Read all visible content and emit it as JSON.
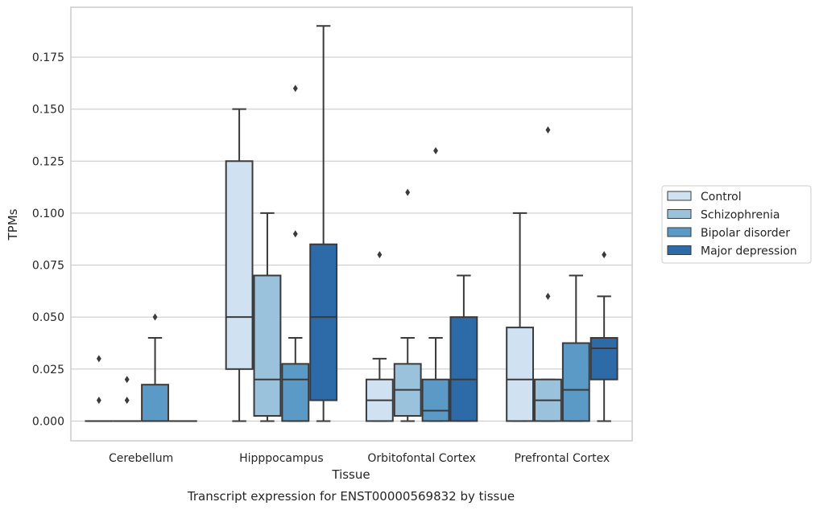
{
  "chart_data": {
    "type": "box",
    "title": "",
    "caption": "Transcript expression for ENST00000569832 by tissue",
    "xlabel": "Tissue",
    "ylabel": "TPMs",
    "ylim": [
      -0.0095,
      0.199
    ],
    "yticks": [
      "0.000",
      "0.025",
      "0.050",
      "0.075",
      "0.100",
      "0.125",
      "0.150",
      "0.175"
    ],
    "grid": "horizontal",
    "legend_position": "right",
    "categories": [
      "Cerebellum",
      "Hipppocampus",
      "Orbitofontal Cortex",
      "Prefrontal Cortex"
    ],
    "series": [
      {
        "name": "Control",
        "color": "#d0e1f2",
        "boxes": [
          {
            "min": 0.0,
            "q1": 0.0,
            "median": 0.0,
            "q3": 0.0,
            "max": 0.0,
            "outliers": [
              0.01,
              0.03
            ]
          },
          {
            "min": 0.0,
            "q1": 0.025,
            "median": 0.05,
            "q3": 0.125,
            "max": 0.15,
            "outliers": []
          },
          {
            "min": 0.0,
            "q1": 0.0,
            "median": 0.01,
            "q3": 0.02,
            "max": 0.03,
            "outliers": [
              0.08
            ]
          },
          {
            "min": 0.0,
            "q1": 0.0,
            "median": 0.02,
            "q3": 0.045,
            "max": 0.1,
            "outliers": []
          }
        ]
      },
      {
        "name": "Schizophrenia",
        "color": "#9ac2dc",
        "boxes": [
          {
            "min": 0.0,
            "q1": 0.0,
            "median": 0.0,
            "q3": 0.0,
            "max": 0.0,
            "outliers": [
              0.01,
              0.02
            ]
          },
          {
            "min": 0.0,
            "q1": 0.0025,
            "median": 0.02,
            "q3": 0.07,
            "max": 0.1,
            "outliers": []
          },
          {
            "min": 0.0,
            "q1": 0.0025,
            "median": 0.015,
            "q3": 0.0275,
            "max": 0.04,
            "outliers": [
              0.11
            ]
          },
          {
            "min": 0.0,
            "q1": 0.0,
            "median": 0.01,
            "q3": 0.02,
            "max": 0.02,
            "outliers": [
              0.06,
              0.14
            ]
          }
        ]
      },
      {
        "name": "Bipolar disorder",
        "color": "#5b9ac6",
        "boxes": [
          {
            "min": 0.0,
            "q1": 0.0,
            "median": 0.0,
            "q3": 0.0175,
            "max": 0.04,
            "outliers": [
              0.05
            ]
          },
          {
            "min": 0.0,
            "q1": 0.0,
            "median": 0.02,
            "q3": 0.0275,
            "max": 0.04,
            "outliers": [
              0.09,
              0.16
            ]
          },
          {
            "min": 0.0,
            "q1": 0.0,
            "median": 0.005,
            "q3": 0.02,
            "max": 0.04,
            "outliers": [
              0.13
            ]
          },
          {
            "min": 0.0,
            "q1": 0.0,
            "median": 0.015,
            "q3": 0.0375,
            "max": 0.07,
            "outliers": []
          }
        ]
      },
      {
        "name": "Major depression",
        "color": "#2c6aa8",
        "boxes": [
          {
            "min": 0.0,
            "q1": 0.0,
            "median": 0.0,
            "q3": 0.0,
            "max": 0.0,
            "outliers": []
          },
          {
            "min": 0.0,
            "q1": 0.01,
            "median": 0.05,
            "q3": 0.085,
            "max": 0.19,
            "outliers": []
          },
          {
            "min": 0.0,
            "q1": 0.0,
            "median": 0.02,
            "q3": 0.05,
            "max": 0.07,
            "outliers": []
          },
          {
            "min": 0.0,
            "q1": 0.02,
            "median": 0.035,
            "q3": 0.04,
            "max": 0.06,
            "outliers": [
              0.08
            ]
          }
        ]
      }
    ]
  }
}
